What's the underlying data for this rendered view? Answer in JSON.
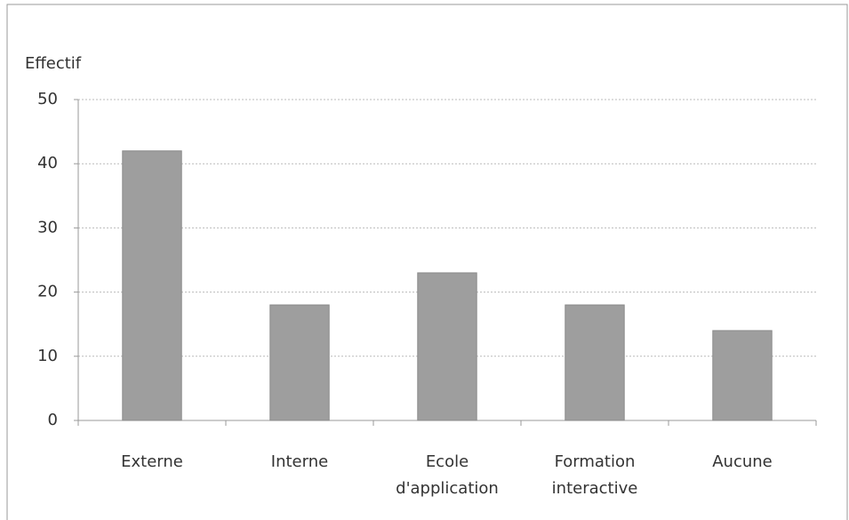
{
  "chart_data": {
    "type": "bar",
    "y_axis_label": "Effectif",
    "categories": [
      "Externe",
      "Interne",
      "Ecole d'application",
      "Formation interactive",
      "Aucune"
    ],
    "values": [
      42,
      18,
      23,
      18,
      14
    ],
    "color": "#9e9e9e",
    "ylim": [
      0,
      50
    ],
    "yticks": [
      0,
      10,
      20,
      30,
      40,
      50
    ],
    "grid": true
  }
}
